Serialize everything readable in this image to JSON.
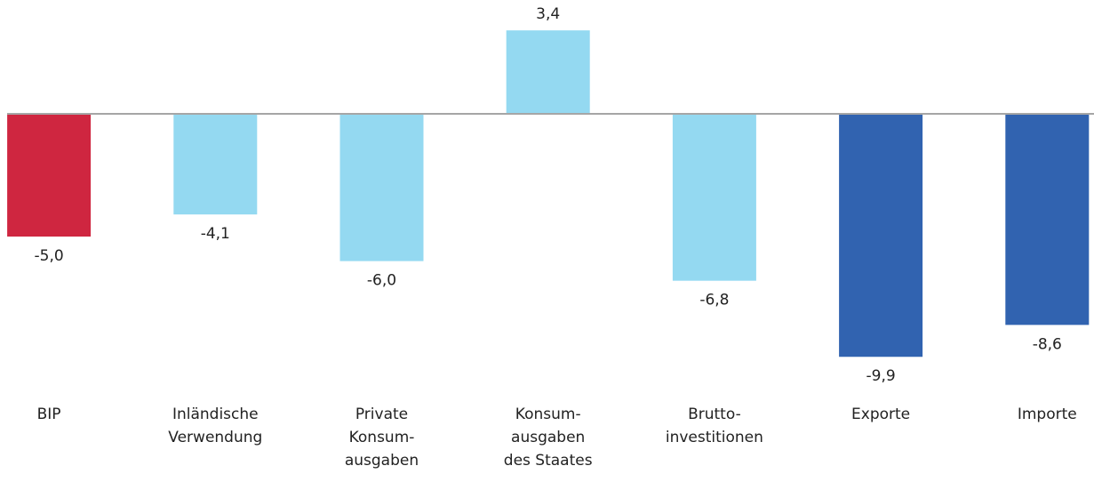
{
  "chart_data": {
    "type": "bar",
    "categories": [
      [
        "BIP"
      ],
      [
        "Inländische",
        "Verwendung"
      ],
      [
        "Private",
        "Konsum-",
        "ausgaben"
      ],
      [
        "Konsum-",
        "ausgaben",
        "des Staates"
      ],
      [
        "Brutto-",
        "investitionen"
      ],
      [
        "Exporte"
      ],
      [
        "Importe"
      ]
    ],
    "values": [
      -5.0,
      -4.1,
      -6.0,
      3.4,
      -6.8,
      -9.9,
      -8.6
    ],
    "value_labels": [
      "-5,0",
      "-4,1",
      "-6,0",
      "3,4",
      "-6,8",
      "-9,9",
      "-8,6"
    ],
    "colors": [
      "#cf2640",
      "#94d9f1",
      "#94d9f1",
      "#94d9f1",
      "#94d9f1",
      "#3163b0",
      "#3163b0"
    ],
    "ylim": [
      -10,
      4
    ]
  }
}
